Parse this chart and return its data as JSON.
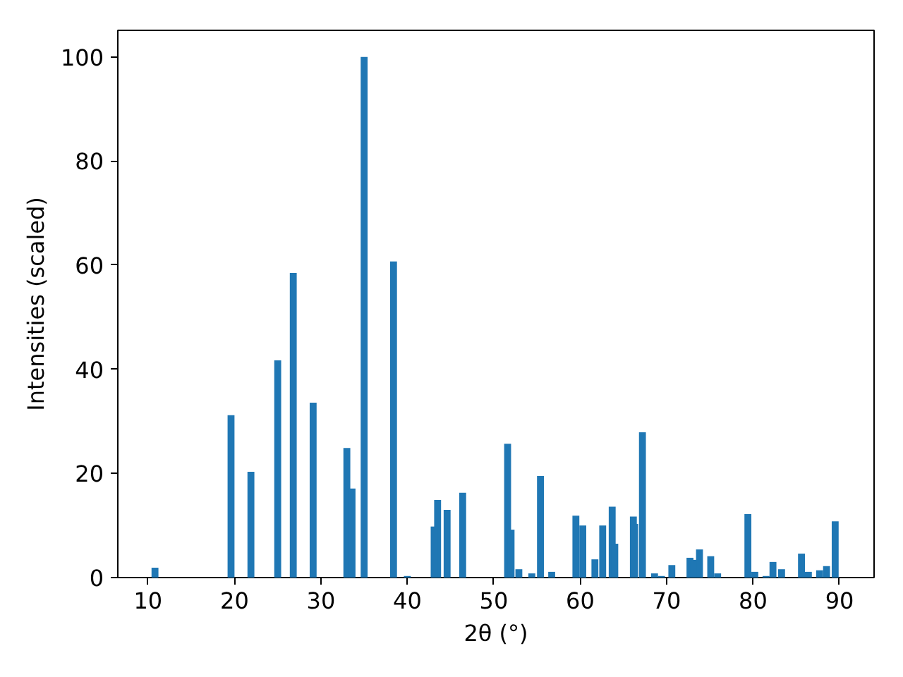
{
  "chart_data": {
    "type": "bar",
    "xlabel": "2θ (°)",
    "ylabel": "Intensities (scaled)",
    "color": "#1f77b4",
    "x": [
      10.8,
      19.6,
      21.9,
      25.0,
      26.8,
      29.1,
      33.0,
      33.6,
      35.0,
      38.4,
      40.0,
      43.1,
      43.5,
      44.6,
      46.4,
      51.6,
      52.0,
      52.9,
      54.4,
      55.4,
      56.7,
      59.5,
      60.3,
      61.7,
      62.6,
      63.7,
      64.0,
      66.15,
      66.3,
      67.2,
      68.6,
      69.4,
      70.6,
      72.7,
      73.1,
      73.8,
      75.1,
      75.9,
      79.4,
      80.2,
      81.5,
      82.3,
      83.3,
      85.6,
      86.4,
      87.7,
      88.5,
      89.5
    ],
    "values": [
      1.9,
      31.2,
      20.3,
      41.7,
      58.5,
      33.6,
      24.9,
      17.1,
      100,
      60.7,
      0.3,
      9.8,
      14.9,
      13.0,
      16.3,
      25.7,
      9.2,
      1.6,
      0.8,
      19.5,
      1.1,
      11.9,
      10.0,
      3.5,
      10.0,
      13.6,
      6.5,
      11.7,
      10.3,
      27.9,
      0.8,
      0.3,
      2.4,
      3.8,
      3.4,
      5.4,
      4.1,
      0.8,
      12.2,
      1.1,
      0.3,
      3.0,
      1.6,
      4.6,
      1.1,
      1.4,
      2.2,
      10.8
    ],
    "xlim": [
      6.5,
      94.0
    ],
    "xticks": [
      10,
      20,
      30,
      40,
      50,
      60,
      70,
      80,
      90
    ],
    "ylim": [
      0,
      105.1
    ],
    "yticks": [
      0,
      20,
      40,
      60,
      80,
      100
    ],
    "grid": false
  }
}
